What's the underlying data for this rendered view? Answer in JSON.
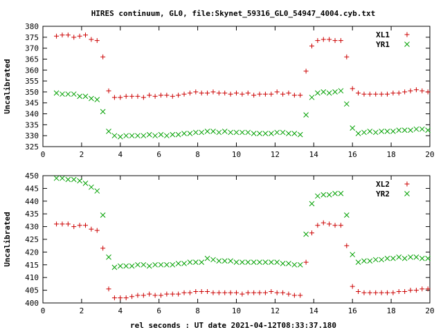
{
  "title": "HIRES continuum, GL0, file:Skynet_59316_GL0_54947_4004.cyb.txt",
  "xlabel": "rel seconds : UT date 2021-04-12T08:33:37.180",
  "chart_data": [
    {
      "type": "scatter",
      "ylabel": "Uncalibrated",
      "xlim": [
        0,
        20
      ],
      "ylim": [
        325,
        380
      ],
      "xticks": [
        0,
        2,
        4,
        6,
        8,
        10,
        12,
        14,
        16,
        18,
        20
      ],
      "yticks": [
        325,
        330,
        335,
        340,
        345,
        350,
        355,
        360,
        365,
        370,
        375,
        380
      ],
      "legend": "top-right",
      "series": [
        {
          "name": "XL1",
          "marker": "plus",
          "color": "#cc0000",
          "x": [
            0.7,
            1.0,
            1.3,
            1.6,
            1.9,
            2.2,
            2.5,
            2.8,
            3.1,
            3.4,
            3.7,
            4.0,
            4.3,
            4.6,
            4.9,
            5.2,
            5.5,
            5.8,
            6.1,
            6.4,
            6.7,
            7.0,
            7.3,
            7.6,
            7.9,
            8.2,
            8.5,
            8.8,
            9.1,
            9.4,
            9.7,
            10.0,
            10.3,
            10.6,
            10.9,
            11.2,
            11.5,
            11.8,
            12.1,
            12.4,
            12.7,
            13.0,
            13.3,
            13.6,
            13.9,
            14.2,
            14.5,
            14.8,
            15.1,
            15.4,
            15.7,
            16.0,
            16.3,
            16.6,
            16.9,
            17.2,
            17.5,
            17.8,
            18.1,
            18.4,
            18.7,
            19.0,
            19.3,
            19.6,
            19.9
          ],
          "y": [
            375.5,
            376,
            376,
            375,
            375.5,
            376,
            374,
            373.5,
            366,
            350.5,
            347.5,
            347.5,
            348,
            348,
            348,
            347.5,
            348.5,
            348,
            348.5,
            348.5,
            348,
            348.5,
            349,
            349.5,
            350,
            349.5,
            349.5,
            350,
            349.5,
            349.5,
            349,
            349.5,
            349,
            349.5,
            348.5,
            349,
            349,
            349,
            350,
            349,
            349.5,
            348.5,
            348.5,
            359.5,
            371,
            373.5,
            374,
            374,
            373.5,
            373.5,
            366,
            351.5,
            349.5,
            349,
            349,
            349,
            349,
            349,
            349.5,
            349.5,
            350,
            350.5,
            351,
            350.5,
            350
          ]
        },
        {
          "name": "YR1",
          "marker": "cross",
          "color": "#00a000",
          "x": [
            0.7,
            1.0,
            1.3,
            1.6,
            1.9,
            2.2,
            2.5,
            2.8,
            3.1,
            3.4,
            3.7,
            4.0,
            4.3,
            4.6,
            4.9,
            5.2,
            5.5,
            5.8,
            6.1,
            6.4,
            6.7,
            7.0,
            7.3,
            7.6,
            7.9,
            8.2,
            8.5,
            8.8,
            9.1,
            9.4,
            9.7,
            10.0,
            10.3,
            10.6,
            10.9,
            11.2,
            11.5,
            11.8,
            12.1,
            12.4,
            12.7,
            13.0,
            13.3,
            13.6,
            13.9,
            14.2,
            14.5,
            14.8,
            15.1,
            15.4,
            15.7,
            16.0,
            16.3,
            16.6,
            16.9,
            17.2,
            17.5,
            17.8,
            18.1,
            18.4,
            18.7,
            19.0,
            19.3,
            19.6,
            19.9
          ],
          "y": [
            349.5,
            349,
            349,
            349,
            348,
            348,
            347,
            346.5,
            341,
            332,
            330,
            329.5,
            330,
            330,
            330,
            330,
            330.5,
            330,
            330.5,
            330,
            330.5,
            330.5,
            331,
            331,
            331.5,
            331.5,
            332,
            332,
            331.5,
            332,
            331.5,
            331.5,
            331.5,
            331.5,
            331,
            331,
            331,
            331,
            331.5,
            331.5,
            331,
            331,
            330.5,
            339.5,
            347.5,
            349.5,
            350,
            349.5,
            350,
            350.5,
            344.5,
            333.5,
            331,
            331.5,
            332,
            331.5,
            332,
            332,
            332,
            332.5,
            332.5,
            332.5,
            333,
            333,
            332.5
          ]
        }
      ]
    },
    {
      "type": "scatter",
      "ylabel": "Uncalibrated",
      "xlim": [
        0,
        20
      ],
      "ylim": [
        400,
        450
      ],
      "xticks": [
        0,
        2,
        4,
        6,
        8,
        10,
        12,
        14,
        16,
        18,
        20
      ],
      "yticks": [
        400,
        405,
        410,
        415,
        420,
        425,
        430,
        435,
        440,
        445,
        450
      ],
      "legend": "top-right",
      "series": [
        {
          "name": "XL2",
          "marker": "plus",
          "color": "#cc0000",
          "x": [
            0.7,
            1.0,
            1.3,
            1.6,
            1.9,
            2.2,
            2.5,
            2.8,
            3.1,
            3.4,
            3.7,
            4.0,
            4.3,
            4.6,
            4.9,
            5.2,
            5.5,
            5.8,
            6.1,
            6.4,
            6.7,
            7.0,
            7.3,
            7.6,
            7.9,
            8.2,
            8.5,
            8.8,
            9.1,
            9.4,
            9.7,
            10.0,
            10.3,
            10.6,
            10.9,
            11.2,
            11.5,
            11.8,
            12.1,
            12.4,
            12.7,
            13.0,
            13.3,
            13.6,
            13.9,
            14.2,
            14.5,
            14.8,
            15.1,
            15.4,
            15.7,
            16.0,
            16.3,
            16.6,
            16.9,
            17.2,
            17.5,
            17.8,
            18.1,
            18.4,
            18.7,
            19.0,
            19.3,
            19.6,
            19.9
          ],
          "y": [
            431,
            431,
            431,
            430,
            430.5,
            430.5,
            429,
            428.5,
            421.5,
            405.5,
            402,
            402,
            402,
            402.5,
            403,
            403,
            403.5,
            403,
            403,
            403.5,
            403.5,
            403.5,
            404,
            404,
            404.5,
            404.5,
            404.5,
            404,
            404,
            404,
            404,
            404,
            403.5,
            404,
            404,
            404,
            404,
            404.5,
            404,
            404,
            403.5,
            403,
            403,
            416,
            427.5,
            430.5,
            431.5,
            431,
            430.5,
            430.5,
            422.5,
            406.5,
            404.5,
            404,
            404,
            404,
            404,
            404,
            404,
            404.5,
            404.5,
            405,
            405,
            405.5,
            405.5
          ]
        },
        {
          "name": "YR2",
          "marker": "cross",
          "color": "#00a000",
          "x": [
            0.7,
            1.0,
            1.3,
            1.6,
            1.9,
            2.2,
            2.5,
            2.8,
            3.1,
            3.4,
            3.7,
            4.0,
            4.3,
            4.6,
            4.9,
            5.2,
            5.5,
            5.8,
            6.1,
            6.4,
            6.7,
            7.0,
            7.3,
            7.6,
            7.9,
            8.2,
            8.5,
            8.8,
            9.1,
            9.4,
            9.7,
            10.0,
            10.3,
            10.6,
            10.9,
            11.2,
            11.5,
            11.8,
            12.1,
            12.4,
            12.7,
            13.0,
            13.3,
            13.6,
            13.9,
            14.2,
            14.5,
            14.8,
            15.1,
            15.4,
            15.7,
            16.0,
            16.3,
            16.6,
            16.9,
            17.2,
            17.5,
            17.8,
            18.1,
            18.4,
            18.7,
            19.0,
            19.3,
            19.6,
            19.9
          ],
          "y": [
            449,
            449,
            448.5,
            448.5,
            448,
            447,
            445.5,
            444,
            434.5,
            418,
            414,
            414.5,
            414.5,
            414.5,
            415,
            415,
            414.5,
            415,
            415,
            415,
            415,
            415.5,
            415.5,
            416,
            416,
            416,
            417.5,
            417,
            416.5,
            416.5,
            416.5,
            416,
            416,
            416,
            416,
            416,
            416,
            416,
            416,
            415.5,
            415.5,
            415,
            415,
            427,
            439,
            442,
            442.5,
            442.5,
            443,
            443,
            434.5,
            419,
            416,
            416.5,
            416.5,
            417,
            417,
            417.5,
            417.5,
            418,
            417.5,
            418,
            418,
            417.5,
            417.5
          ]
        }
      ]
    }
  ]
}
